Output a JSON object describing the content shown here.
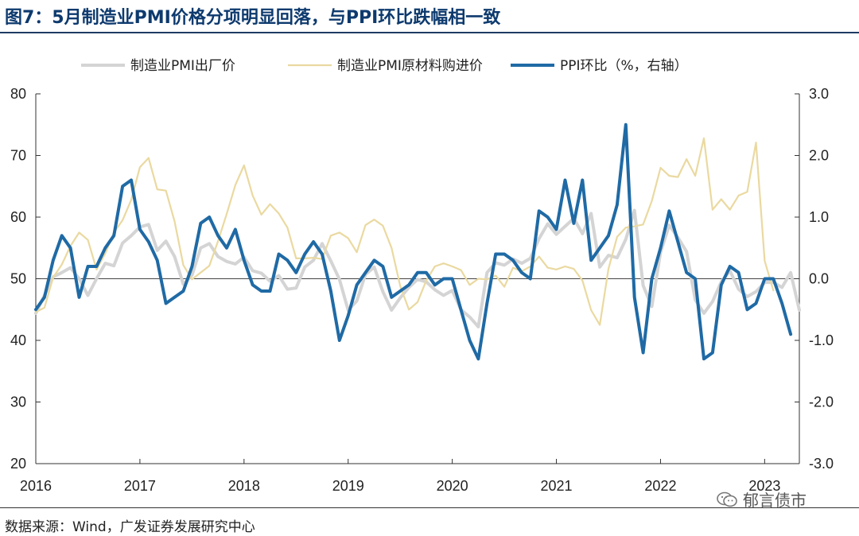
{
  "header": {
    "title": "图7：5月制造业PMI价格分项明显回落，与PPI环比跌幅相一致"
  },
  "footer": {
    "source": "数据来源：Wind，广发证券发展研究中心",
    "watermark": "郁言债市"
  },
  "colors": {
    "out_price": "#d4d4d4",
    "in_price": "#ead9a0",
    "ppi": "#1f6aa5"
  },
  "chart_data": {
    "type": "line",
    "x_ticks": [
      "2016",
      "2017",
      "2018",
      "2019",
      "2020",
      "2021",
      "2022",
      "2023"
    ],
    "x_start": "2016-01",
    "x_end": "2023-05",
    "left_axis": {
      "ticks": [
        20,
        30,
        40,
        50,
        60,
        70,
        80
      ],
      "range": [
        20,
        80
      ]
    },
    "right_axis": {
      "ticks": [
        "-3.0",
        "-2.0",
        "-1.0",
        "0.0",
        "1.0",
        "2.0",
        "3.0"
      ],
      "range": [
        -3,
        3
      ]
    },
    "reference_line": {
      "axis": "right",
      "value": 0
    },
    "legend_position": "top",
    "series": [
      {
        "name": "制造业PMI出厂价",
        "axis": "left",
        "color": "#d4d4d4",
        "width": 4,
        "values": [
          44.4,
          47.3,
          50.3,
          51.0,
          51.8,
          50.0,
          47.3,
          50.0,
          52.5,
          52.1,
          55.8,
          57.0,
          58.4,
          58.8,
          54.6,
          56.1,
          53.6,
          49.1,
          50.6,
          55.0,
          55.7,
          53.6,
          52.8,
          52.4,
          53.5,
          51.3,
          50.9,
          49.6,
          50.5,
          48.3,
          48.5,
          51.9,
          53.0,
          55.7,
          52.9,
          49.9,
          44.9,
          46.4,
          50.7,
          51.9,
          47.9,
          44.9,
          46.9,
          48.6,
          49.9,
          49.5,
          48.2,
          47.3,
          48.1,
          45.0,
          43.8,
          42.2,
          51.0,
          52.6,
          52.2,
          53.2,
          52.5,
          53.3,
          56.5,
          58.9,
          57.2,
          58.5,
          59.8,
          57.3,
          60.6,
          51.9,
          53.8,
          53.4,
          56.4,
          61.1,
          48.9,
          45.5,
          54.3,
          58.7,
          56.7,
          54.4,
          46.6,
          44.4,
          46.3,
          49.5,
          51.3,
          48.3,
          47.1,
          47.9,
          49.4,
          49.4,
          48.6,
          51.0,
          44.9
        ]
      },
      {
        "name": "制造业PMI原材料购进价",
        "axis": "left",
        "color": "#ead9a0",
        "width": 2.2,
        "values": [
          44.6,
          45.3,
          50.2,
          52.3,
          55.3,
          57.5,
          56.3,
          51.5,
          54.1,
          57.5,
          59.5,
          62.8,
          68.1,
          69.6,
          64.5,
          64.3,
          59.3,
          52.2,
          49.9,
          51.0,
          52.1,
          56.1,
          60.5,
          65.2,
          68.4,
          63.5,
          60.4,
          62.1,
          60.6,
          58.3,
          53.3,
          53.3,
          53.4,
          53.2,
          57.0,
          57.5,
          56.6,
          54.3,
          58.7,
          59.6,
          58.6,
          55.0,
          48.8,
          45.0,
          46.2,
          49.7,
          52.0,
          52.5,
          52.0,
          51.4,
          49.0,
          50.0,
          49.9,
          50.5,
          48.7,
          51.8,
          51.2,
          52.0,
          53.6,
          51.8,
          51.5,
          52.0,
          51.6,
          49.7,
          44.9,
          42.5,
          51.6,
          56.8,
          58.3,
          58.5,
          58.8,
          62.6,
          68.0,
          66.7,
          66.5,
          69.4,
          66.7,
          72.8,
          61.2,
          62.9,
          61.2,
          63.5,
          64.1,
          72.1,
          52.9,
          48.1
        ]
      },
      {
        "name": "PPI环比（%，右轴）",
        "axis": "right",
        "color": "#1f6aa5",
        "width": 4,
        "values": [
          -0.5,
          -0.3,
          0.3,
          0.7,
          0.5,
          -0.3,
          0.2,
          0.2,
          0.5,
          0.7,
          1.5,
          1.6,
          0.8,
          0.6,
          0.3,
          -0.4,
          -0.3,
          -0.2,
          0.2,
          0.9,
          1.0,
          0.7,
          0.5,
          0.8,
          0.3,
          -0.1,
          -0.2,
          -0.2,
          0.4,
          0.3,
          0.1,
          0.4,
          0.6,
          0.4,
          -0.2,
          -1.0,
          -0.6,
          -0.1,
          0.1,
          0.3,
          0.2,
          -0.3,
          -0.2,
          -0.1,
          0.1,
          0.1,
          -0.1,
          0.0,
          0.0,
          -0.5,
          -1.0,
          -1.3,
          -0.4,
          0.4,
          0.4,
          0.3,
          0.1,
          0.0,
          1.1,
          1.0,
          0.8,
          1.6,
          0.9,
          1.6,
          0.3,
          0.5,
          0.7,
          1.2,
          2.5,
          -0.3,
          -1.2,
          0.0,
          0.5,
          1.1,
          0.6,
          0.1,
          0.0,
          -1.3,
          -1.2,
          -0.1,
          0.2,
          0.1,
          -0.5,
          -0.4,
          0.0,
          0.0,
          -0.4,
          -0.9
        ]
      }
    ]
  }
}
